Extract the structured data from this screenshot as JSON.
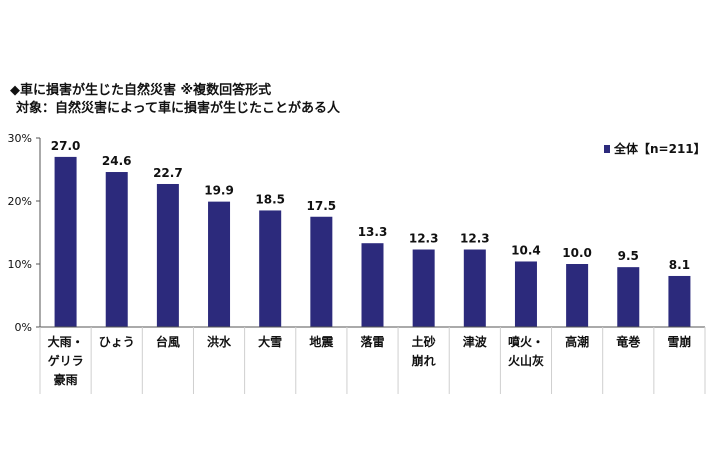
{
  "header": {
    "title": "◆車に損害が生じた自然災害 ※複数回答形式",
    "subtitle": "対象：自然災害によって車に損害が生じたことがある人"
  },
  "chart_data": {
    "type": "bar",
    "categories": [
      [
        "大雨・",
        "ゲリラ",
        "豪雨"
      ],
      [
        "ひょう"
      ],
      [
        "台風"
      ],
      [
        "洪水"
      ],
      [
        "大雪"
      ],
      [
        "地震"
      ],
      [
        "落雷"
      ],
      [
        "土砂",
        "崩れ"
      ],
      [
        "津波"
      ],
      [
        "噴火・",
        "火山灰"
      ],
      [
        "高潮"
      ],
      [
        "竜巻"
      ],
      [
        "雪崩"
      ]
    ],
    "series": [
      {
        "name": "全体【n=211】",
        "values": [
          27.0,
          24.6,
          22.7,
          19.9,
          18.5,
          17.5,
          13.3,
          12.3,
          12.3,
          10.4,
          10.0,
          9.5,
          8.1
        ],
        "labels": [
          "27.0",
          "24.6",
          "22.7",
          "19.9",
          "18.5",
          "17.5",
          "13.3",
          "12.3",
          "12.3",
          "10.4",
          "10.0",
          "9.5",
          "8.1"
        ]
      }
    ],
    "ylim": [
      0,
      30
    ],
    "yticks": [
      0,
      10,
      20,
      30
    ],
    "ytick_labels": [
      "0%",
      "10%",
      "20%",
      "30%"
    ],
    "grid": false,
    "legend_position": "top-right",
    "colors": {
      "bar": "#2c2a7c",
      "axis": "#555555",
      "divider": "#cfcfcf"
    }
  }
}
